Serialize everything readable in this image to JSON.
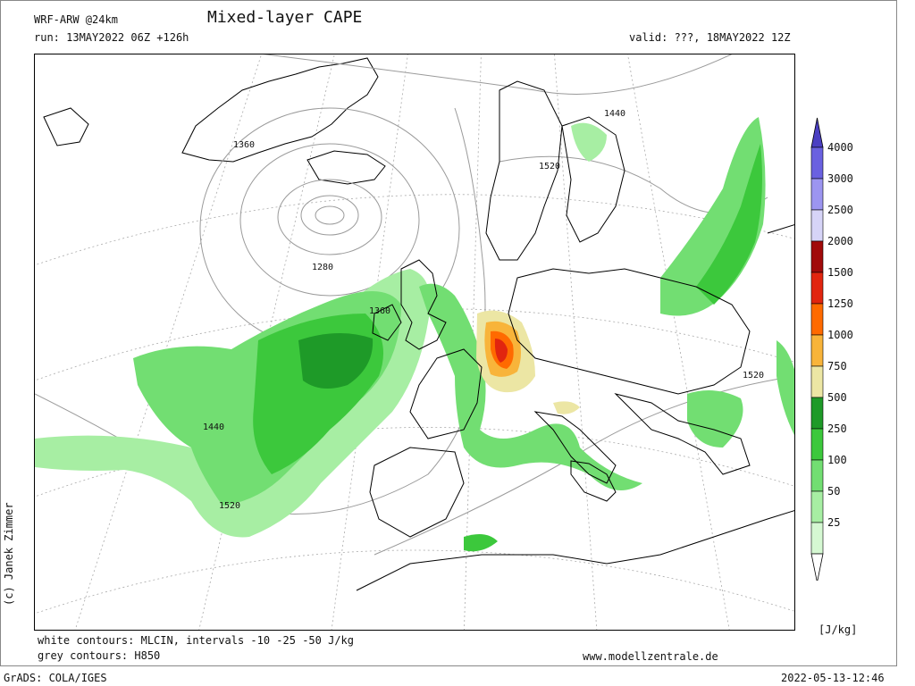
{
  "header": {
    "model": "WRF-ARW @24km",
    "title": "Mixed-layer CAPE",
    "run": "run: 13MAY2022 06Z +126h",
    "valid": "valid: ???, 18MAY2022 12Z"
  },
  "map": {
    "contour_labels": [
      "1360",
      "1280",
      "1360",
      "1440",
      "1520",
      "1440",
      "1520",
      "1520"
    ]
  },
  "legend": {
    "unit": "[J/kg]",
    "levels": [
      {
        "label": "4000",
        "color": "#4b3fc2"
      },
      {
        "label": "3000",
        "color": "#6a61e0"
      },
      {
        "label": "2500",
        "color": "#9c95f0"
      },
      {
        "label": "2000",
        "color": "#d6d4f7"
      },
      {
        "label": "1500",
        "color": "#a10a0a"
      },
      {
        "label": "1250",
        "color": "#e1250f"
      },
      {
        "label": "1000",
        "color": "#ff6a00"
      },
      {
        "label": "750",
        "color": "#f8b43a"
      },
      {
        "label": "500",
        "color": "#ece6a4"
      },
      {
        "label": "250",
        "color": "#1e9a28"
      },
      {
        "label": "100",
        "color": "#3cc83c"
      },
      {
        "label": "50",
        "color": "#72de72"
      },
      {
        "label": "25",
        "color": "#a7eea3"
      },
      {
        "label": "",
        "color": "#d5f8d2"
      }
    ]
  },
  "footer": {
    "line1": "white contours: MLCIN, intervals -10 -25 -50 J/kg",
    "line2": "grey contours: H850",
    "website": "www.modellzentrale.de",
    "credit": "(c) Janek Zimmer",
    "grads": "GrADS: COLA/IGES",
    "timestamp": "2022-05-13-12:46"
  }
}
